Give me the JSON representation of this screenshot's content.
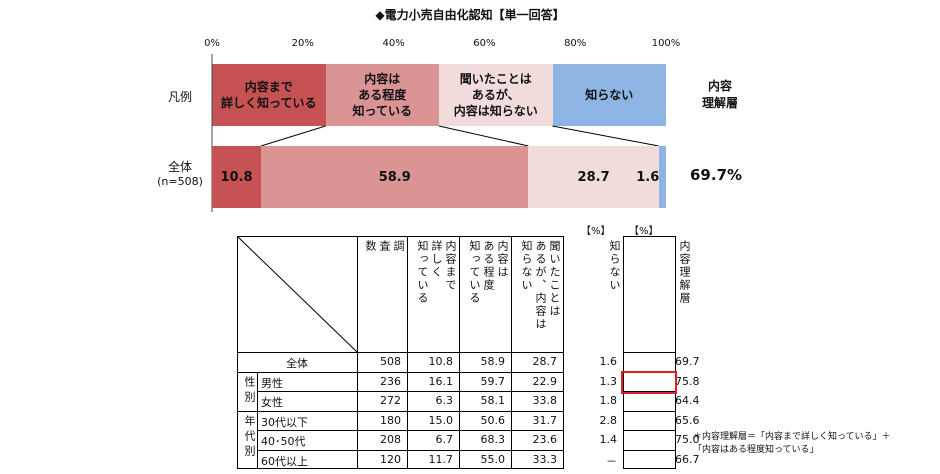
{
  "title": "◆電力小売自由化認知【単一回答】",
  "axis_ticks": [
    "0%",
    "20%",
    "40%",
    "60%",
    "80%",
    "100%"
  ],
  "legend_label": "凡例",
  "total_label_line1": "全体",
  "total_label_line2": "(n=508)",
  "legend_right": "内容\n理解層",
  "total_understanding": "69.7%",
  "colors": {
    "detail": "#c65253",
    "some": "#da9493",
    "heard": "#f2dcdb",
    "unknown": "#8db4e2"
  },
  "chart_data": {
    "type": "bar",
    "orientation": "horizontal-stacked",
    "xlim": [
      0,
      100
    ],
    "categories": [
      "全体(n=508)"
    ],
    "series": [
      {
        "name": "内容まで\n詳しく知っている",
        "values": [
          10.8
        ]
      },
      {
        "name": "内容は\nある程度\n知っている",
        "values": [
          58.9
        ]
      },
      {
        "name": "聞いたことは\nあるが、\n内容は知らない",
        "values": [
          28.7
        ]
      },
      {
        "name": "知らない",
        "values": [
          1.6
        ]
      }
    ]
  },
  "table": {
    "unit_left": "【%】",
    "unit_right": "【%】",
    "headers": [
      "調\n査\n数",
      "内容まで\n詳しく\n知っている",
      "内容は\nある程度\n知っている",
      "聞いたことは\nあるが、内容は\n知らない",
      "知らない",
      "内容理解層"
    ],
    "groups": [
      "性別",
      "年代別"
    ],
    "rows": [
      {
        "label": "全体",
        "values": [
          "508",
          "10.8",
          "58.9",
          "28.7",
          "1.6",
          "69.7"
        ]
      },
      {
        "label": "男性",
        "values": [
          "236",
          "16.1",
          "59.7",
          "22.9",
          "1.3",
          "75.8"
        ]
      },
      {
        "label": "女性",
        "values": [
          "272",
          "6.3",
          "58.1",
          "33.8",
          "1.8",
          "64.4"
        ]
      },
      {
        "label": "30代以下",
        "values": [
          "180",
          "15.0",
          "50.6",
          "31.7",
          "2.8",
          "65.6"
        ]
      },
      {
        "label": "40･50代",
        "values": [
          "208",
          "6.7",
          "68.3",
          "23.6",
          "1.4",
          "75.0"
        ]
      },
      {
        "label": "60代以上",
        "values": [
          "120",
          "11.7",
          "55.0",
          "33.3",
          "－",
          "66.7"
        ]
      }
    ]
  },
  "footnote": "＊内容理解層＝「内容まで詳しく知っている」＋\n「内容はある程度知っている」"
}
